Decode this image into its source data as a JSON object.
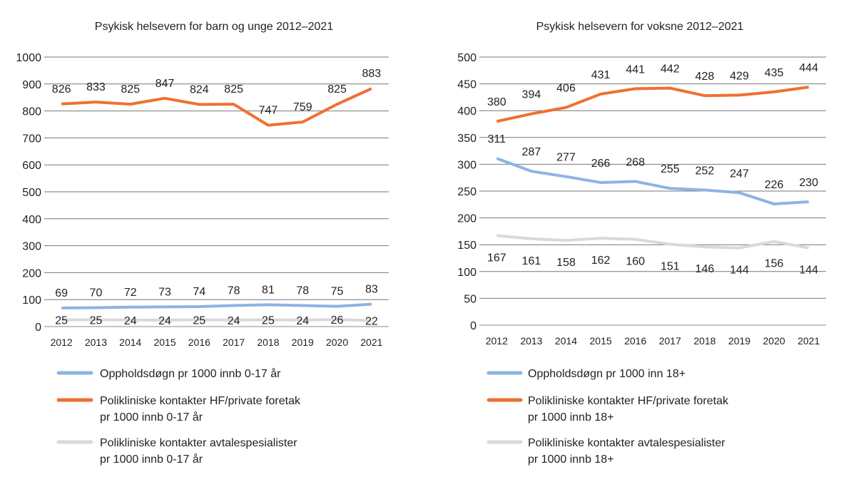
{
  "chart_data": [
    {
      "type": "line",
      "title": "Psykisk helsevern for barn og unge 2012–2021",
      "categories": [
        "2012",
        "2013",
        "2014",
        "2015",
        "2016",
        "2017",
        "2018",
        "2019",
        "2020",
        "2021"
      ],
      "ylim": [
        0,
        1000
      ],
      "yticks": [
        0,
        100,
        200,
        300,
        400,
        500,
        600,
        700,
        800,
        900,
        1000
      ],
      "grid": true,
      "legend_placement": "bottom",
      "series": [
        {
          "name": "Oppholdsdøgn pr 1000 innb 0-17 år",
          "legend_lines": [
            "Oppholdsdøgn pr 1000 innb 0-17 år"
          ],
          "color": "#8db4e2",
          "values": [
            69,
            70,
            72,
            73,
            74,
            78,
            81,
            78,
            75,
            83
          ],
          "label_pos": "above"
        },
        {
          "name": "Polikliniske kontakter HF/private foretak pr 1000 innb 0-17 år",
          "legend_lines": [
            "Polikliniske kontakter HF/private foretak",
            "pr 1000 innb 0-17 år"
          ],
          "color": "#f07030",
          "values": [
            826,
            833,
            825,
            847,
            824,
            825,
            747,
            759,
            825,
            883
          ],
          "label_pos": "above"
        },
        {
          "name": "Polikliniske kontakter avtalespesialister pr 1000 innb 0-17 år",
          "legend_lines": [
            "Polikliniske kontakter avtalespesialister",
            "pr 1000 innb 0-17 år"
          ],
          "color": "#d9d9d9",
          "values": [
            25,
            25,
            24,
            24,
            25,
            24,
            25,
            24,
            26,
            22
          ],
          "label_pos": "on"
        }
      ]
    },
    {
      "type": "line",
      "title": "Psykisk helsevern for voksne 2012–2021",
      "categories": [
        "2012",
        "2013",
        "2014",
        "2015",
        "2016",
        "2017",
        "2018",
        "2019",
        "2020",
        "2021"
      ],
      "ylim": [
        0,
        500
      ],
      "yticks": [
        0,
        50,
        100,
        150,
        200,
        250,
        300,
        350,
        400,
        450,
        500
      ],
      "grid": true,
      "legend_placement": "bottom",
      "series": [
        {
          "name": "Oppholdsdøgn pr 1000 inn 18+",
          "legend_lines": [
            "Oppholdsdøgn pr 1000 inn 18+"
          ],
          "color": "#8db4e2",
          "values": [
            311,
            287,
            277,
            266,
            268,
            255,
            252,
            247,
            226,
            230
          ],
          "label_pos": "above"
        },
        {
          "name": "Polikliniske kontakter HF/private foretak pr 1000 innb 18+",
          "legend_lines": [
            "Polikliniske kontakter HF/private foretak",
            "pr 1000 innb 18+"
          ],
          "color": "#f07030",
          "values": [
            380,
            394,
            406,
            431,
            441,
            442,
            428,
            429,
            435,
            444
          ],
          "label_pos": "above"
        },
        {
          "name": "Polikliniske kontakter avtalespesialister pr 1000 innb 18+",
          "legend_lines": [
            "Polikliniske kontakter avtalespesialister",
            "pr 1000 innb 18+"
          ],
          "color": "#d9d9d9",
          "values": [
            167,
            161,
            158,
            162,
            160,
            151,
            146,
            144,
            156,
            144
          ],
          "label_pos": "below"
        }
      ]
    }
  ]
}
